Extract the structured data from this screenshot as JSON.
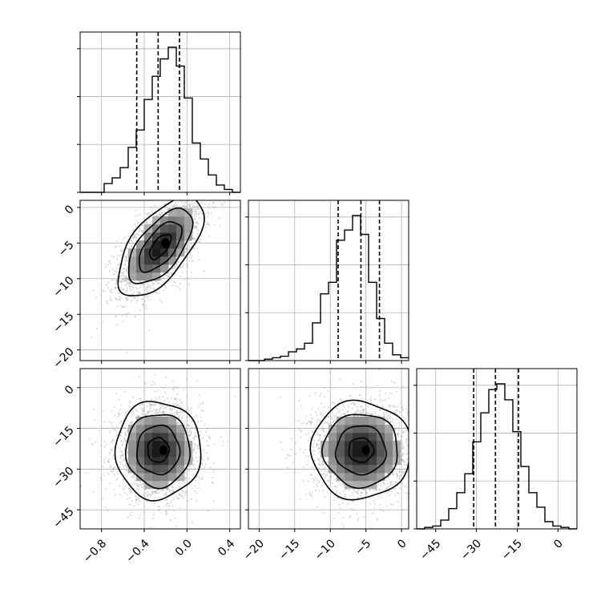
{
  "chart_data": {
    "type": "corner",
    "parameters": [
      {
        "range": [
          -1.0,
          0.5
        ],
        "ticks": [
          -0.8,
          -0.4,
          0.0,
          0.4
        ],
        "tick_labels": [
          "−0.8",
          "−0.4",
          "0.0",
          "0.4"
        ],
        "quantiles": [
          -0.47,
          -0.27,
          -0.07
        ],
        "hist_edges": [
          -1.0,
          -0.925,
          -0.85,
          -0.775,
          -0.7,
          -0.625,
          -0.55,
          -0.475,
          -0.4,
          -0.325,
          -0.25,
          -0.175,
          -0.1,
          -0.025,
          0.05,
          0.125,
          0.2,
          0.275,
          0.35,
          0.425,
          0.5
        ],
        "hist_counts": [
          0,
          0,
          0,
          0.06,
          0.1,
          0.17,
          0.31,
          0.43,
          0.64,
          0.8,
          0.92,
          1.0,
          0.87,
          0.65,
          0.34,
          0.23,
          0.12,
          0.05,
          0.02,
          0
        ],
        "hist_yticks": [
          0.0,
          0.33,
          0.66,
          0.99
        ]
      },
      {
        "range": [
          -21.5,
          1.0
        ],
        "ticks": [
          -20,
          -15,
          -10,
          -5,
          0
        ],
        "tick_labels": [
          "−20",
          "−15",
          "−10",
          "−5",
          "0"
        ],
        "quantiles": [
          -8.9,
          -5.7,
          -3.1
        ],
        "hist_edges": [
          -21.5,
          -20.375,
          -19.25,
          -18.125,
          -17.0,
          -15.875,
          -14.75,
          -13.625,
          -12.5,
          -11.375,
          -10.25,
          -9.125,
          -8.0,
          -6.875,
          -5.75,
          -4.625,
          -3.5,
          -2.375,
          -1.25,
          -0.125,
          1.0
        ],
        "hist_counts": [
          0,
          0,
          0.01,
          0.02,
          0.03,
          0.06,
          0.08,
          0.12,
          0.26,
          0.46,
          0.54,
          0.83,
          0.9,
          1.0,
          0.87,
          0.54,
          0.29,
          0.12,
          0.04,
          0.02
        ],
        "hist_yticks": [
          0.0,
          0.33,
          0.66,
          0.99
        ]
      },
      {
        "range": [
          -52.0,
          7.0
        ],
        "ticks": [
          -45,
          -30,
          -15,
          0
        ],
        "tick_labels": [
          "−45",
          "−30",
          "−15",
          "0"
        ],
        "quantiles": [
          -31.0,
          -23.0,
          -14.5
        ],
        "hist_edges": [
          -52.0,
          -49.05,
          -46.1,
          -43.15,
          -40.2,
          -37.25,
          -34.3,
          -31.35,
          -28.4,
          -25.45,
          -22.5,
          -19.55,
          -16.6,
          -13.65,
          -10.7,
          -7.75,
          -4.8,
          -1.85,
          1.1,
          4.05,
          7.0
        ],
        "hist_counts": [
          0,
          0.01,
          0.02,
          0.06,
          0.14,
          0.25,
          0.38,
          0.6,
          0.8,
          0.96,
          1.0,
          0.89,
          0.67,
          0.43,
          0.25,
          0.15,
          0.05,
          0.02,
          0.01,
          0
        ],
        "hist_yticks": [
          0.0,
          0.33,
          0.66,
          0.99
        ]
      }
    ],
    "pairs": [
      {
        "x_param": 0,
        "y_param": 1,
        "mean": [
          -0.25,
          -5.5
        ],
        "std": [
          0.2,
          3.5
        ],
        "corr": 0.62,
        "peak": [
          -0.2,
          -5.0
        ]
      },
      {
        "x_param": 0,
        "y_param": 2,
        "mean": [
          -0.27,
          -23.0
        ],
        "std": [
          0.2,
          9.0
        ],
        "corr": 0.0,
        "peak": [
          -0.22,
          -23.0
        ]
      },
      {
        "x_param": 1,
        "y_param": 2,
        "mean": [
          -5.7,
          -23.0
        ],
        "std": [
          3.5,
          9.0
        ],
        "corr": 0.0,
        "peak": [
          -5.0,
          -23.0
        ]
      }
    ],
    "contour_sigma_levels": [
      0.5,
      1.0,
      1.5,
      2.0
    ],
    "grid": true
  }
}
